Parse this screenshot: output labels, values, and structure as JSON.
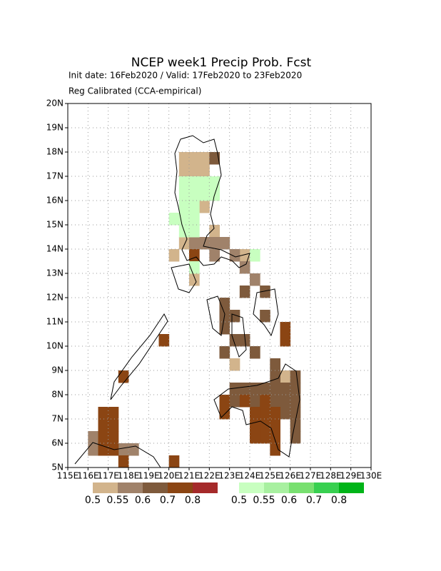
{
  "chart_data": {
    "type": "grid-map",
    "title": "NCEP week1 Precip Prob. Fcst",
    "subtitle": "Init date: 16Feb2020 / Valid: 17Feb2020 to 23Feb2020",
    "note": "Reg Calibrated (CCA-empirical)",
    "xlim": [
      115,
      130
    ],
    "ylim": [
      5,
      20
    ],
    "xticks": [
      {
        "value": 115,
        "label": "115E"
      },
      {
        "value": 116,
        "label": "116E"
      },
      {
        "value": 117,
        "label": "117E"
      },
      {
        "value": 118,
        "label": "118E"
      },
      {
        "value": 119,
        "label": "119E"
      },
      {
        "value": 120,
        "label": "120E"
      },
      {
        "value": 121,
        "label": "121E"
      },
      {
        "value": 122,
        "label": "122E"
      },
      {
        "value": 123,
        "label": "123E"
      },
      {
        "value": 124,
        "label": "124E"
      },
      {
        "value": 125,
        "label": "125E"
      },
      {
        "value": 126,
        "label": "126E"
      },
      {
        "value": 127,
        "label": "127E"
      },
      {
        "value": 128,
        "label": "128E"
      },
      {
        "value": 129,
        "label": "129E"
      },
      {
        "value": 130,
        "label": "130E"
      }
    ],
    "yticks": [
      {
        "value": 5,
        "label": "5N"
      },
      {
        "value": 6,
        "label": "6N"
      },
      {
        "value": 7,
        "label": "7N"
      },
      {
        "value": 8,
        "label": "8N"
      },
      {
        "value": 9,
        "label": "9N"
      },
      {
        "value": 10,
        "label": "10N"
      },
      {
        "value": 11,
        "label": "11N"
      },
      {
        "value": 12,
        "label": "12N"
      },
      {
        "value": 13,
        "label": "13N"
      },
      {
        "value": 14,
        "label": "14N"
      },
      {
        "value": 15,
        "label": "15N"
      },
      {
        "value": 16,
        "label": "16N"
      },
      {
        "value": 17,
        "label": "17N"
      },
      {
        "value": 18,
        "label": "18N"
      },
      {
        "value": 19,
        "label": "19N"
      },
      {
        "value": 20,
        "label": "20N"
      }
    ],
    "grid": true,
    "scales": [
      {
        "levels": [
          0.5,
          0.55,
          0.6,
          0.7,
          0.8
        ],
        "colors": [
          "#d2b48c",
          "#a0826a",
          "#7e5a3c",
          "#8b4513",
          "#a52a2a"
        ],
        "cells": [
          [
            120.5,
            17.5,
            0.5
          ],
          [
            121,
            17.5,
            0.5
          ],
          [
            121.5,
            17.5,
            0.5
          ],
          [
            120.5,
            17,
            0.5
          ],
          [
            121,
            17,
            0.5
          ],
          [
            121.5,
            17,
            0.5
          ],
          [
            122,
            17.5,
            0.6
          ],
          [
            121.5,
            15.5,
            0.5
          ],
          [
            122,
            14.5,
            0.5
          ],
          [
            120.5,
            14,
            0.5
          ],
          [
            120,
            13.5,
            0.5
          ],
          [
            121,
            12.5,
            0.5
          ],
          [
            123.5,
            13.5,
            0.5
          ],
          [
            125.5,
            8.5,
            0.5
          ],
          [
            123,
            9,
            0.5
          ],
          [
            121,
            14,
            0.55
          ],
          [
            121.5,
            14,
            0.55
          ],
          [
            122,
            14,
            0.55
          ],
          [
            122.5,
            14,
            0.55
          ],
          [
            122,
            13.5,
            0.55
          ],
          [
            123,
            13.5,
            0.55
          ],
          [
            123.5,
            13,
            0.55
          ],
          [
            124,
            12.5,
            0.55
          ],
          [
            116,
            5.5,
            0.55
          ],
          [
            117.5,
            5.5,
            0.55
          ],
          [
            118,
            5.5,
            0.55
          ],
          [
            116,
            6,
            0.55
          ],
          [
            122.5,
            11.5,
            0.6
          ],
          [
            122.5,
            11,
            0.6
          ],
          [
            122.5,
            10.5,
            0.6
          ],
          [
            123,
            11,
            0.6
          ],
          [
            123,
            10,
            0.6
          ],
          [
            123.5,
            10,
            0.6
          ],
          [
            124,
            9.5,
            0.6
          ],
          [
            122.5,
            9.5,
            0.6
          ],
          [
            123.5,
            12,
            0.6
          ],
          [
            124.5,
            11,
            0.6
          ],
          [
            124.5,
            12,
            0.6
          ],
          [
            125,
            9,
            0.6
          ],
          [
            123,
            8,
            0.6
          ],
          [
            123.5,
            8,
            0.6
          ],
          [
            124,
            8,
            0.6
          ],
          [
            124.5,
            8,
            0.6
          ],
          [
            125,
            8,
            0.6
          ],
          [
            125.5,
            8,
            0.6
          ],
          [
            126,
            8,
            0.6
          ],
          [
            125,
            8.5,
            0.6
          ],
          [
            126,
            8.5,
            0.6
          ],
          [
            125,
            7.5,
            0.6
          ],
          [
            125.5,
            7.5,
            0.6
          ],
          [
            126,
            7.5,
            0.6
          ],
          [
            125.5,
            7,
            0.6
          ],
          [
            126,
            7,
            0.6
          ],
          [
            126,
            6.5,
            0.6
          ],
          [
            126,
            6,
            0.6
          ],
          [
            123,
            7.5,
            0.6
          ],
          [
            124,
            7.5,
            0.6
          ],
          [
            124,
            7,
            0.7
          ],
          [
            124.5,
            7,
            0.7
          ],
          [
            125,
            7,
            0.7
          ],
          [
            124,
            6.5,
            0.7
          ],
          [
            124.5,
            6.5,
            0.7
          ],
          [
            125,
            6.5,
            0.7
          ],
          [
            124,
            6,
            0.7
          ],
          [
            124.5,
            6,
            0.7
          ],
          [
            125,
            6,
            0.7
          ],
          [
            125,
            5.5,
            0.7
          ],
          [
            123.5,
            7.5,
            0.7
          ],
          [
            124.5,
            7.5,
            0.7
          ],
          [
            122.5,
            7,
            0.7
          ],
          [
            122.5,
            7.5,
            0.7
          ],
          [
            116.5,
            7,
            0.7
          ],
          [
            117,
            7,
            0.7
          ],
          [
            116.5,
            6.5,
            0.7
          ],
          [
            117,
            6.5,
            0.7
          ],
          [
            116.5,
            6,
            0.7
          ],
          [
            117,
            6,
            0.7
          ],
          [
            116.5,
            5.5,
            0.7
          ],
          [
            117,
            5.5,
            0.7
          ],
          [
            117.5,
            5,
            0.7
          ],
          [
            117.5,
            8.5,
            0.7
          ],
          [
            119.5,
            10,
            0.7
          ],
          [
            120,
            5,
            0.7
          ],
          [
            125.5,
            10.5,
            0.7
          ],
          [
            125.5,
            10,
            0.7
          ],
          [
            121,
            13.5,
            0.7
          ]
        ]
      },
      {
        "levels": [
          0.5,
          0.55,
          0.6,
          0.7,
          0.8
        ],
        "colors": [
          "#c8ffc0",
          "#a8f0a0",
          "#78e070",
          "#38d050",
          "#00b418"
        ],
        "cells": [
          [
            120.5,
            16.5,
            0.5
          ],
          [
            121,
            16.5,
            0.5
          ],
          [
            121.5,
            16.5,
            0.5
          ],
          [
            122,
            16.5,
            0.5
          ],
          [
            120.5,
            16,
            0.5
          ],
          [
            121,
            16,
            0.5
          ],
          [
            121.5,
            16,
            0.5
          ],
          [
            122,
            16,
            0.5
          ],
          [
            120.5,
            15.5,
            0.5
          ],
          [
            121,
            15.5,
            0.5
          ],
          [
            120,
            15,
            0.5
          ],
          [
            120.5,
            15,
            0.5
          ],
          [
            121,
            15,
            0.5
          ],
          [
            120.5,
            14.5,
            0.5
          ],
          [
            121,
            14.5,
            0.5
          ],
          [
            121,
            13,
            0.5
          ],
          [
            124,
            13.5,
            0.5
          ]
        ]
      }
    ]
  }
}
